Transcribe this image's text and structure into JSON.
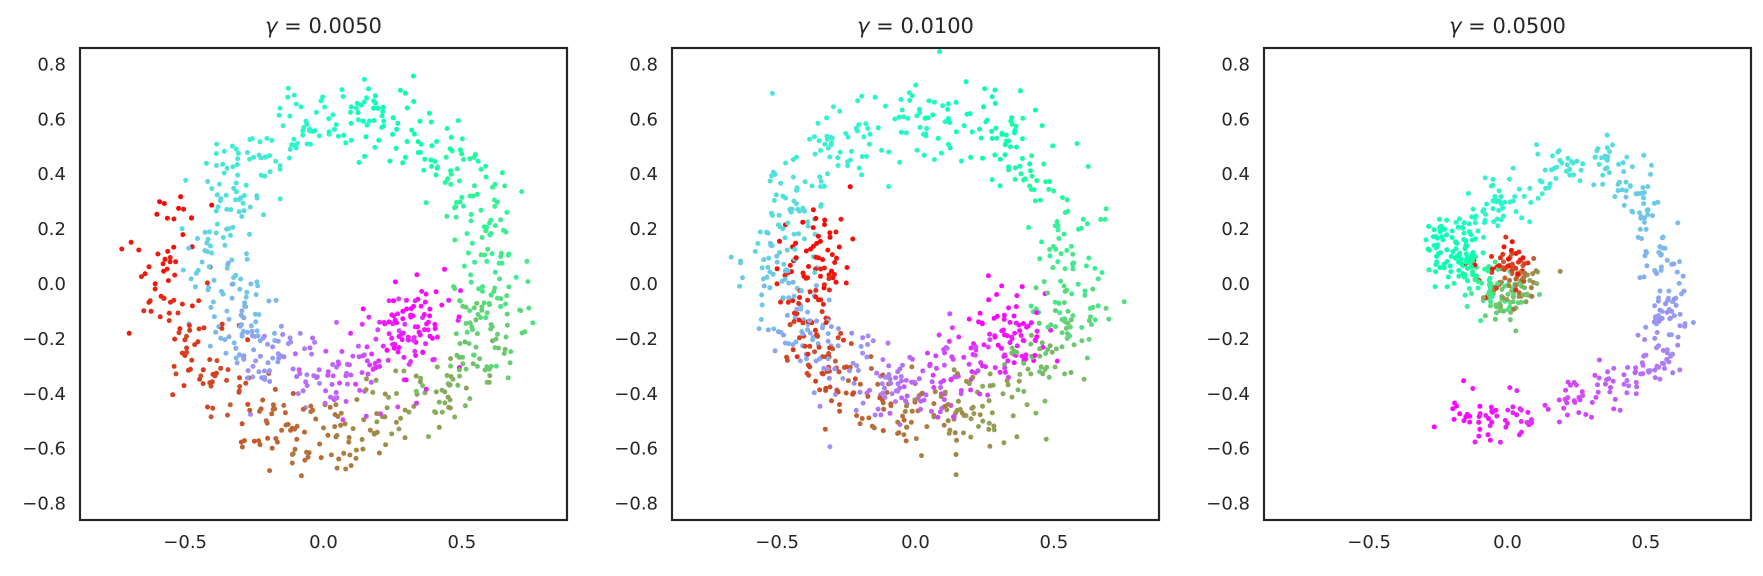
{
  "chart_data": [
    {
      "type": "scatter",
      "title_symbol": "γ",
      "title_value": "= 0.0050",
      "xlim": [
        -0.88,
        0.88
      ],
      "ylim": [
        -0.86,
        0.86
      ],
      "xticks": [
        -0.5,
        0.0,
        0.5
      ],
      "xtick_labels": [
        "−0.5",
        "0.0",
        "0.5"
      ],
      "yticks": [
        0.8,
        0.6,
        0.4,
        0.2,
        0.0,
        -0.2,
        -0.4,
        -0.6,
        -0.8
      ],
      "ytick_labels": [
        "0.8",
        "0.6",
        "0.4",
        "0.2",
        "0.0",
        "−0.2",
        "−0.4",
        "−0.6",
        "−0.8"
      ],
      "grid": false,
      "colormap": "rainbow",
      "shape": "spiral annulus centered near (0.05, 0.0), outer radius ~0.65, inner radius ~0.33; color advances along the arc from violet at (0.35,-0.15) through blue, cyan, green, yellow, orange to red at (-0.45,0.3)",
      "points": [
        {
          "x": 0.33,
          "y": -0.1,
          "c": 0.0
        },
        {
          "x": 0.38,
          "y": -0.16,
          "c": 0.02
        },
        {
          "x": 0.27,
          "y": -0.2,
          "c": 0.05
        },
        {
          "x": 0.15,
          "y": -0.3,
          "c": 0.09
        },
        {
          "x": 0.02,
          "y": -0.33,
          "c": 0.13
        },
        {
          "x": -0.12,
          "y": -0.32,
          "c": 0.18
        },
        {
          "x": -0.24,
          "y": -0.24,
          "c": 0.22
        },
        {
          "x": -0.33,
          "y": -0.08,
          "c": 0.27
        },
        {
          "x": -0.38,
          "y": 0.12,
          "c": 0.31
        },
        {
          "x": -0.33,
          "y": 0.36,
          "c": 0.35
        },
        {
          "x": -0.18,
          "y": 0.52,
          "c": 0.4
        },
        {
          "x": 0.02,
          "y": 0.6,
          "c": 0.44
        },
        {
          "x": 0.25,
          "y": 0.6,
          "c": 0.49
        },
        {
          "x": 0.45,
          "y": 0.48,
          "c": 0.55
        },
        {
          "x": 0.58,
          "y": 0.25,
          "c": 0.6
        },
        {
          "x": 0.63,
          "y": 0.0,
          "c": 0.65
        },
        {
          "x": 0.58,
          "y": -0.2,
          "c": 0.7
        },
        {
          "x": 0.45,
          "y": -0.38,
          "c": 0.75
        },
        {
          "x": 0.25,
          "y": -0.5,
          "c": 0.8
        },
        {
          "x": 0.02,
          "y": -0.58,
          "c": 0.84
        },
        {
          "x": -0.22,
          "y": -0.52,
          "c": 0.88
        },
        {
          "x": -0.45,
          "y": -0.3,
          "c": 0.92
        },
        {
          "x": -0.6,
          "y": 0.0,
          "c": 0.96
        },
        {
          "x": -0.48,
          "y": 0.32,
          "c": 1.0
        }
      ]
    },
    {
      "type": "scatter",
      "title_symbol": "γ",
      "title_value": "= 0.0100",
      "xlim": [
        -0.88,
        0.88
      ],
      "ylim": [
        -0.86,
        0.86
      ],
      "xticks": [
        -0.5,
        0.0,
        0.5
      ],
      "xtick_labels": [
        "−0.5",
        "0.0",
        "0.5"
      ],
      "yticks": [
        0.8,
        0.6,
        0.4,
        0.2,
        0.0,
        -0.2,
        -0.4,
        -0.6,
        -0.8
      ],
      "ytick_labels": [
        "0.8",
        "0.6",
        "0.4",
        "0.2",
        "0.0",
        "−0.2",
        "−0.4",
        "−0.6",
        "−0.8"
      ],
      "grid": false,
      "colormap": "rainbow",
      "shape": "ring similar to first panel but the violet/blue and orange/red portions overlap in the lower-left quadrant; red cluster near (-0.33,0.18)",
      "points": [
        {
          "x": 0.3,
          "y": -0.12,
          "c": 0.0
        },
        {
          "x": 0.4,
          "y": -0.2,
          "c": 0.03
        },
        {
          "x": 0.2,
          "y": -0.3,
          "c": 0.07
        },
        {
          "x": 0.05,
          "y": -0.38,
          "c": 0.12
        },
        {
          "x": -0.15,
          "y": -0.35,
          "c": 0.17
        },
        {
          "x": -0.35,
          "y": -0.22,
          "c": 0.22
        },
        {
          "x": -0.48,
          "y": -0.05,
          "c": 0.27
        },
        {
          "x": -0.5,
          "y": 0.15,
          "c": 0.31
        },
        {
          "x": -0.42,
          "y": 0.35,
          "c": 0.35
        },
        {
          "x": -0.25,
          "y": 0.52,
          "c": 0.4
        },
        {
          "x": 0.0,
          "y": 0.6,
          "c": 0.44
        },
        {
          "x": 0.22,
          "y": 0.58,
          "c": 0.49
        },
        {
          "x": 0.42,
          "y": 0.45,
          "c": 0.55
        },
        {
          "x": 0.55,
          "y": 0.2,
          "c": 0.6
        },
        {
          "x": 0.57,
          "y": -0.05,
          "c": 0.66
        },
        {
          "x": 0.48,
          "y": -0.25,
          "c": 0.72
        },
        {
          "x": 0.3,
          "y": -0.42,
          "c": 0.78
        },
        {
          "x": 0.1,
          "y": -0.48,
          "c": 0.82
        },
        {
          "x": -0.1,
          "y": -0.46,
          "c": 0.86
        },
        {
          "x": -0.3,
          "y": -0.35,
          "c": 0.9
        },
        {
          "x": -0.4,
          "y": -0.15,
          "c": 0.94
        },
        {
          "x": -0.38,
          "y": 0.1,
          "c": 0.97
        },
        {
          "x": -0.33,
          "y": 0.18,
          "c": 1.0
        }
      ]
    },
    {
      "type": "scatter",
      "title_symbol": "γ",
      "title_value": "= 0.0500",
      "xlim": [
        -0.88,
        0.88
      ],
      "ylim": [
        -0.86,
        0.86
      ],
      "xticks": [
        -0.5,
        0.0,
        0.5
      ],
      "xtick_labels": [
        "−0.5",
        "0.0",
        "0.5"
      ],
      "yticks": [
        0.8,
        0.6,
        0.4,
        0.2,
        0.0,
        -0.2,
        -0.4,
        -0.6,
        -0.8
      ],
      "ytick_labels": [
        "0.8",
        "0.6",
        "0.4",
        "0.2",
        "0.0",
        "−0.2",
        "−0.4",
        "−0.6",
        "−0.8"
      ],
      "grid": false,
      "colormap": "rainbow",
      "shape": "distorted pentagon-like loop: violet/blue points along the bottom and right edges, cyan along top, green cluster near (-0.2,0.12), small dense orange/red ring near (0.0,0.0)",
      "points": [
        {
          "x": -0.15,
          "y": -0.48,
          "c": 0.0
        },
        {
          "x": 0.05,
          "y": -0.48,
          "c": 0.05
        },
        {
          "x": 0.3,
          "y": -0.4,
          "c": 0.1
        },
        {
          "x": 0.55,
          "y": -0.3,
          "c": 0.16
        },
        {
          "x": 0.58,
          "y": -0.05,
          "c": 0.22
        },
        {
          "x": 0.5,
          "y": 0.25,
          "c": 0.28
        },
        {
          "x": 0.35,
          "y": 0.48,
          "c": 0.33
        },
        {
          "x": 0.1,
          "y": 0.38,
          "c": 0.38
        },
        {
          "x": -0.1,
          "y": 0.25,
          "c": 0.43
        },
        {
          "x": -0.22,
          "y": 0.15,
          "c": 0.48
        },
        {
          "x": -0.2,
          "y": 0.08,
          "c": 0.52
        },
        {
          "x": -0.08,
          "y": 0.0,
          "c": 0.6
        },
        {
          "x": 0.0,
          "y": -0.08,
          "c": 0.7
        },
        {
          "x": 0.06,
          "y": -0.02,
          "c": 0.8
        },
        {
          "x": 0.02,
          "y": 0.06,
          "c": 0.9
        },
        {
          "x": -0.05,
          "y": 0.08,
          "c": 1.0
        }
      ]
    }
  ]
}
